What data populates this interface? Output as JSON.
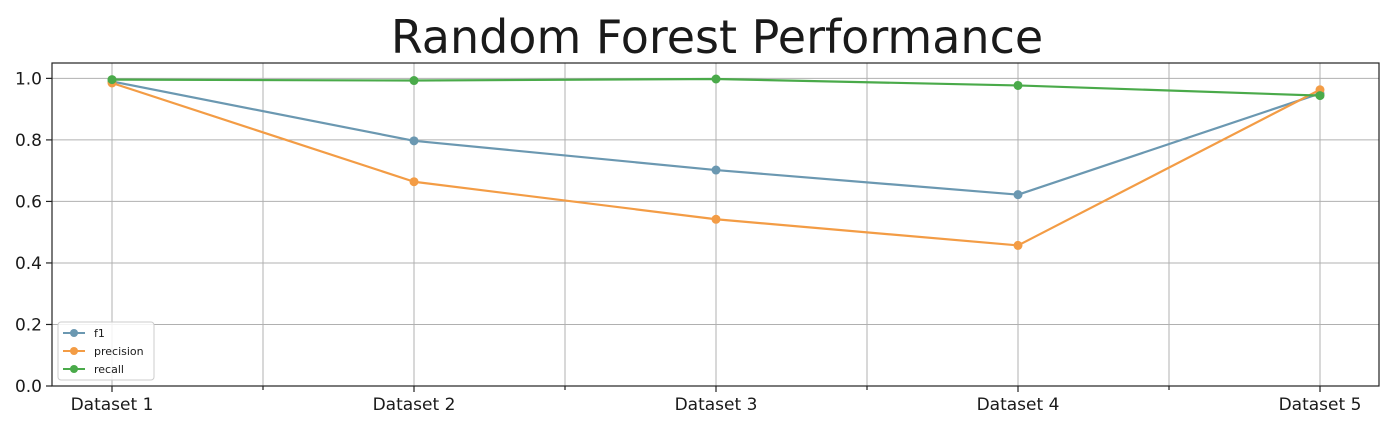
{
  "chart_data": {
    "type": "line",
    "title": "Random Forest Performance",
    "xlabel": "",
    "ylabel": "",
    "categories": [
      "Dataset 1",
      "Dataset 2",
      "Dataset 3",
      "Dataset 4",
      "Dataset 5"
    ],
    "ylim": [
      0.0,
      1.05
    ],
    "yticks": [
      "0.0",
      "0.2",
      "0.4",
      "0.6",
      "0.8",
      "1.0"
    ],
    "grid": true,
    "legend_position": "lower-left",
    "series": [
      {
        "name": "f1",
        "color": "#6b98b1",
        "values": [
          0.99,
          0.797,
          0.702,
          0.622,
          0.951
        ]
      },
      {
        "name": "precision",
        "color": "#f39c45",
        "values": [
          0.985,
          0.664,
          0.542,
          0.457,
          0.963
        ]
      },
      {
        "name": "recall",
        "color": "#4aaa4a",
        "values": [
          0.996,
          0.993,
          0.998,
          0.977,
          0.944
        ]
      }
    ]
  }
}
